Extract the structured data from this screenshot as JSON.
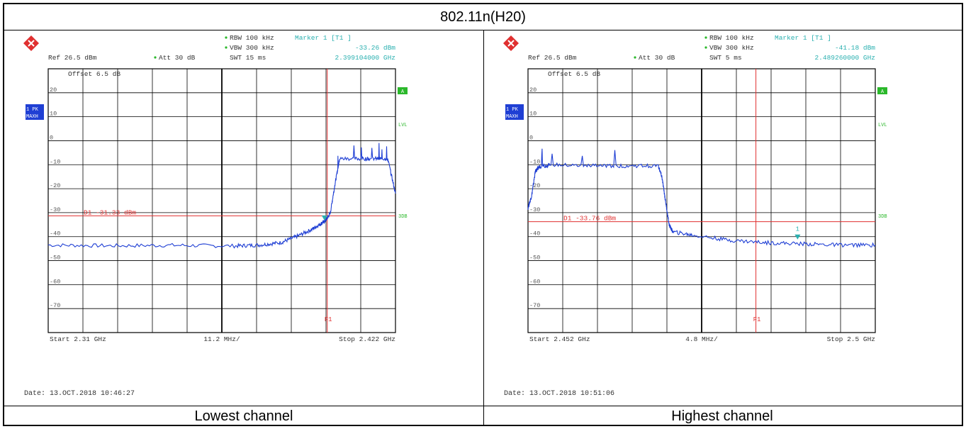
{
  "title": "802.11n(H20)",
  "captions": [
    "Lowest channel",
    "Highest channel"
  ],
  "colors": {
    "trace": "#1f3fd4",
    "grid": "#000000",
    "marker": "#e03030",
    "accent": "#2bb82b",
    "info": "#2ab0b0",
    "badge": "#1f3fd4"
  },
  "chart_data": [
    {
      "type": "line",
      "logo": "rohde-schwarz-logo",
      "header": {
        "rbw": "RBW 100 kHz",
        "vbw": "VBW 300 kHz",
        "swt": "SWT 15 ms",
        "marker_label": "Marker 1 [T1 ]",
        "marker_level": "-33.26 dBm",
        "marker_freq": "2.399104000 GHz",
        "ref": "Ref  26.5 dBm",
        "att": "Att  30 dB",
        "offset": "Offset  6.5 dB"
      },
      "side_labels": {
        "a": "A",
        "lvl": "LVL",
        "db3": "3DB",
        "pk": "1 PK",
        "maxh": "MAXH"
      },
      "yticks": [
        20,
        10,
        0,
        -10,
        -20,
        -30,
        -40,
        -50,
        -60,
        -70
      ],
      "ylim": [
        -80,
        30
      ],
      "xlim": [
        2.31,
        2.422
      ],
      "d1_label": "D1 -31.33 dBm",
      "d1_level": -31.33,
      "f1_label": "F1",
      "f1_freq": 2.4,
      "marker_freq": 2.399104,
      "marker_level": -33.26,
      "marker_num": "",
      "start_label": "Start 2.31 GHz",
      "div_label": "11.2 MHz/",
      "stop_label": "Stop 2.422 GHz",
      "date": "Date: 13.OCT.2018  10:46:27",
      "series": [
        {
          "x": [
            2.31,
            2.33,
            2.35,
            2.37,
            2.378,
            2.385,
            2.39,
            2.395,
            2.398,
            2.3995,
            2.401,
            2.4025,
            2.404,
            2.41,
            2.416,
            2.4195,
            2.422
          ],
          "y": [
            -43.5,
            -43.8,
            -43.6,
            -43.9,
            -43.5,
            -42.5,
            -40,
            -37,
            -34.5,
            -33.3,
            -30,
            -18,
            -7.5,
            -7.5,
            -7.5,
            -7.5,
            -22
          ]
        }
      ]
    },
    {
      "type": "line",
      "logo": "rohde-schwarz-logo",
      "header": {
        "rbw": "RBW 100 kHz",
        "vbw": "VBW 300 kHz",
        "swt": "SWT 5 ms",
        "marker_label": "Marker 1 [T1 ]",
        "marker_level": "-41.18 dBm",
        "marker_freq": "2.489260000 GHz",
        "ref": "Ref  26.5 dBm",
        "att": "Att  30 dB",
        "offset": "Offset  6.5 dB"
      },
      "side_labels": {
        "a": "A",
        "lvl": "LVL",
        "db3": "3DB",
        "pk": "1 PK",
        "maxh": "MAXH"
      },
      "yticks": [
        20,
        10,
        0,
        -10,
        -20,
        -30,
        -40,
        -50,
        -60,
        -70
      ],
      "ylim": [
        -80,
        30
      ],
      "xlim": [
        2.452,
        2.5
      ],
      "d1_label": "D1 -33.76 dBm",
      "d1_level": -33.76,
      "f1_label": "F1",
      "f1_freq": 2.4835,
      "marker_freq": 2.48926,
      "marker_level": -41.18,
      "marker_num": "1",
      "start_label": "Start 2.452 GHz",
      "div_label": "4.8 MHz/",
      "stop_label": "Stop 2.5 GHz",
      "date": "Date: 13.OCT.2018  10:51:06",
      "series": [
        {
          "x": [
            2.452,
            2.4525,
            2.453,
            2.4535,
            2.455,
            2.46,
            2.465,
            2.47,
            2.4705,
            2.471,
            2.4715,
            2.472,
            2.475,
            2.48,
            2.485,
            2.49,
            2.495,
            2.5
          ],
          "y": [
            -28,
            -23,
            -13,
            -11,
            -10,
            -10.5,
            -10.5,
            -10.5,
            -15,
            -25,
            -35,
            -38,
            -39.5,
            -41.5,
            -42.5,
            -43,
            -43.5,
            -43.5
          ]
        }
      ]
    }
  ]
}
